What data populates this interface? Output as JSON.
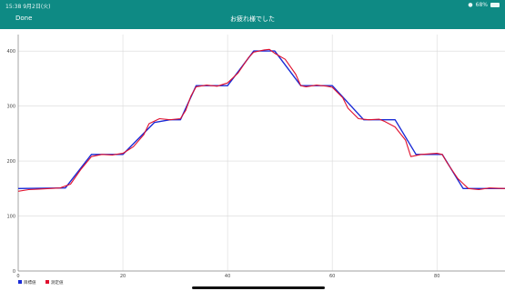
{
  "status_bar": {
    "time": "15:38  9月2日(火)",
    "battery": "68%"
  },
  "nav": {
    "done_label": "Done",
    "title": "お疲れ様でした"
  },
  "chart_data": {
    "type": "line",
    "xlim": [
      0,
      93
    ],
    "ylim": [
      0,
      430
    ],
    "x_ticks": [
      0,
      20,
      40,
      60,
      80
    ],
    "y_ticks": [
      0,
      100,
      200,
      300,
      400
    ],
    "grid": true,
    "legend_position": "bottom-left",
    "series": [
      {
        "name": "目標値",
        "color": "#1a2bd6",
        "points": [
          [
            0,
            150
          ],
          [
            9,
            151
          ],
          [
            14,
            212
          ],
          [
            20,
            212
          ],
          [
            26,
            270
          ],
          [
            29,
            275
          ],
          [
            31,
            275
          ],
          [
            34,
            337
          ],
          [
            40,
            337
          ],
          [
            45,
            400
          ],
          [
            49,
            400
          ],
          [
            54,
            337
          ],
          [
            60,
            337
          ],
          [
            66,
            275
          ],
          [
            72,
            275
          ],
          [
            76,
            212
          ],
          [
            81,
            212
          ],
          [
            85,
            150
          ],
          [
            93,
            150
          ]
        ]
      },
      {
        "name": "測定値",
        "color": "#e0102e",
        "points": [
          [
            0,
            145
          ],
          [
            2,
            148
          ],
          [
            4,
            149
          ],
          [
            8,
            151
          ],
          [
            10,
            158
          ],
          [
            12,
            185
          ],
          [
            14,
            208
          ],
          [
            16,
            212
          ],
          [
            18,
            211
          ],
          [
            20,
            214
          ],
          [
            22,
            226
          ],
          [
            24,
            248
          ],
          [
            25,
            268
          ],
          [
            27,
            277
          ],
          [
            29,
            275
          ],
          [
            31,
            277
          ],
          [
            32,
            292
          ],
          [
            33,
            318
          ],
          [
            34,
            335
          ],
          [
            36,
            338
          ],
          [
            38,
            336
          ],
          [
            40,
            342
          ],
          [
            42,
            360
          ],
          [
            44,
            388
          ],
          [
            45,
            398
          ],
          [
            47,
            402
          ],
          [
            48,
            403
          ],
          [
            49,
            396
          ],
          [
            51,
            385
          ],
          [
            53,
            358
          ],
          [
            54,
            337
          ],
          [
            55,
            335
          ],
          [
            57,
            338
          ],
          [
            59,
            336
          ],
          [
            60,
            334
          ],
          [
            62,
            315
          ],
          [
            63,
            296
          ],
          [
            65,
            277
          ],
          [
            67,
            275
          ],
          [
            69,
            276
          ],
          [
            70,
            272
          ],
          [
            72,
            262
          ],
          [
            74,
            238
          ],
          [
            75,
            208
          ],
          [
            77,
            212
          ],
          [
            80,
            214
          ],
          [
            81,
            212
          ],
          [
            82,
            196
          ],
          [
            84,
            168
          ],
          [
            86,
            150
          ],
          [
            88,
            148
          ],
          [
            90,
            151
          ],
          [
            93,
            150
          ]
        ]
      }
    ]
  }
}
